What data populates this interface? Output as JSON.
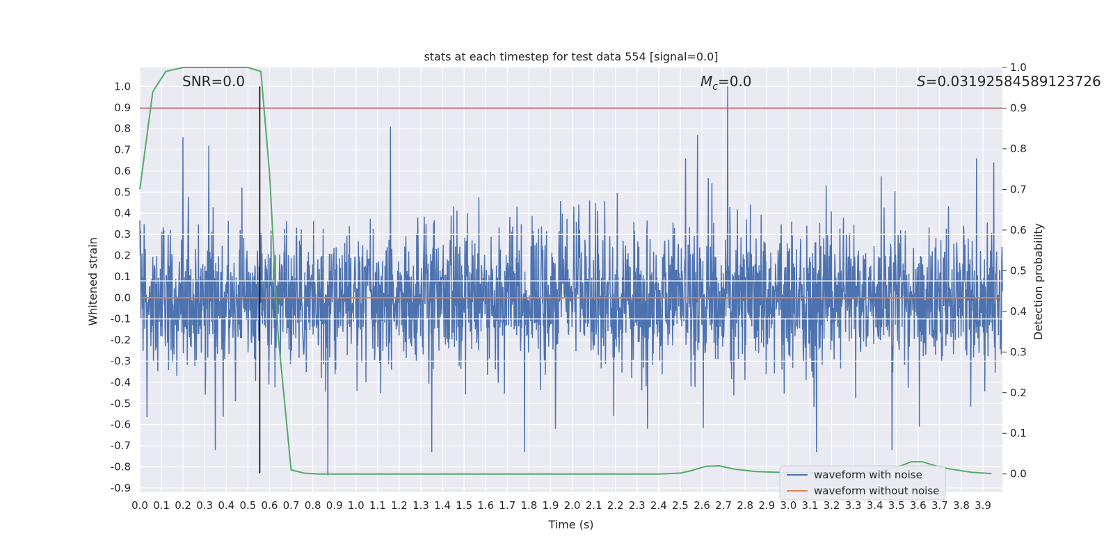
{
  "chart_data": {
    "type": "line",
    "title": "stats at each timestep for test data 554 [signal=0.0]",
    "xlabel": "Time (s)",
    "ylabel": "Whitened strain",
    "y2label": "Detection probability",
    "xlim": [
      0.0,
      3.99
    ],
    "ylim": [
      -0.92,
      1.09
    ],
    "y2lim": [
      -0.045,
      1.0
    ],
    "x_ticks": [
      "0.0",
      "0.1",
      "0.2",
      "0.3",
      "0.4",
      "0.5",
      "0.6",
      "0.7",
      "0.8",
      "0.9",
      "1.0",
      "1.1",
      "1.2",
      "1.3",
      "1.4",
      "1.5",
      "1.6",
      "1.7",
      "1.8",
      "1.9",
      "2.0",
      "2.1",
      "2.2",
      "2.3",
      "2.4",
      "2.5",
      "2.6",
      "2.7",
      "2.8",
      "2.9",
      "3.0",
      "3.1",
      "3.2",
      "3.3",
      "3.4",
      "3.5",
      "3.6",
      "3.7",
      "3.8",
      "3.9"
    ],
    "y_ticks": [
      "1.0",
      "0.9",
      "0.8",
      "0.7",
      "0.6",
      "0.5",
      "0.4",
      "0.3",
      "0.2",
      "0.1",
      "0.0",
      "-0.1",
      "-0.2",
      "-0.3",
      "-0.4",
      "-0.5",
      "-0.6",
      "-0.7",
      "-0.8",
      "-0.9"
    ],
    "y2_ticks": [
      "1.0",
      "0.9",
      "0.8",
      "0.7",
      "0.6",
      "0.5",
      "0.4",
      "0.3",
      "0.2",
      "0.1",
      "0.0"
    ],
    "grid": true,
    "legend_position": "lower-right",
    "annotations": {
      "snr": "SNR=0.0",
      "mc_symbol": "M",
      "mc_sub": "c",
      "mc_value": "=0.0",
      "s_symbol": "S",
      "s_value": "=0.03192584589123726"
    },
    "series": [
      {
        "name": "waveform with noise",
        "axis": "left",
        "color": "#4c72b0",
        "envelope_amplitude": 0.3,
        "peaks": [
          {
            "x": 0.2,
            "y": 0.76
          },
          {
            "x": 0.32,
            "y": 0.72
          },
          {
            "x": 0.35,
            "y": -0.72
          },
          {
            "x": 0.87,
            "y": -0.84
          },
          {
            "x": 1.16,
            "y": 0.81
          },
          {
            "x": 1.35,
            "y": -0.73
          },
          {
            "x": 1.78,
            "y": -0.73
          },
          {
            "x": 2.58,
            "y": 0.77
          },
          {
            "x": 2.72,
            "y": 1.0
          },
          {
            "x": 3.13,
            "y": -0.73
          },
          {
            "x": 3.48,
            "y": -0.72
          },
          {
            "x": 3.95,
            "y": 0.64
          }
        ]
      },
      {
        "name": "waveform without noise",
        "axis": "left",
        "color": "#dd8452",
        "x": [
          0.0,
          3.99
        ],
        "y": [
          0.0,
          0.0
        ]
      },
      {
        "axis": "right",
        "color": "#55a868",
        "x": [
          0.0,
          0.06,
          0.12,
          0.2,
          0.3,
          0.4,
          0.5,
          0.56,
          0.6,
          0.64,
          0.7,
          0.76,
          0.82,
          0.9,
          1.2,
          1.6,
          2.0,
          2.4,
          2.5,
          2.55,
          2.62,
          2.68,
          2.75,
          2.85,
          3.0,
          3.2,
          3.4,
          3.5,
          3.57,
          3.62,
          3.68,
          3.75,
          3.85,
          3.94
        ],
        "y": [
          0.7,
          0.94,
          0.99,
          1.0,
          1.0,
          1.0,
          1.0,
          0.99,
          0.74,
          0.34,
          0.01,
          0.002,
          0.0,
          0.0,
          0.0,
          0.0,
          0.0,
          0.0,
          0.002,
          0.008,
          0.019,
          0.02,
          0.012,
          0.006,
          0.003,
          0.003,
          0.006,
          0.016,
          0.03,
          0.03,
          0.02,
          0.012,
          0.004,
          0.001
        ]
      }
    ],
    "threshold": {
      "axis": "right",
      "y": 0.9,
      "color": "#c44e52"
    },
    "vline": {
      "x": 0.555,
      "y_from": -0.83,
      "y_to": 1.0,
      "color": "#000000"
    }
  }
}
